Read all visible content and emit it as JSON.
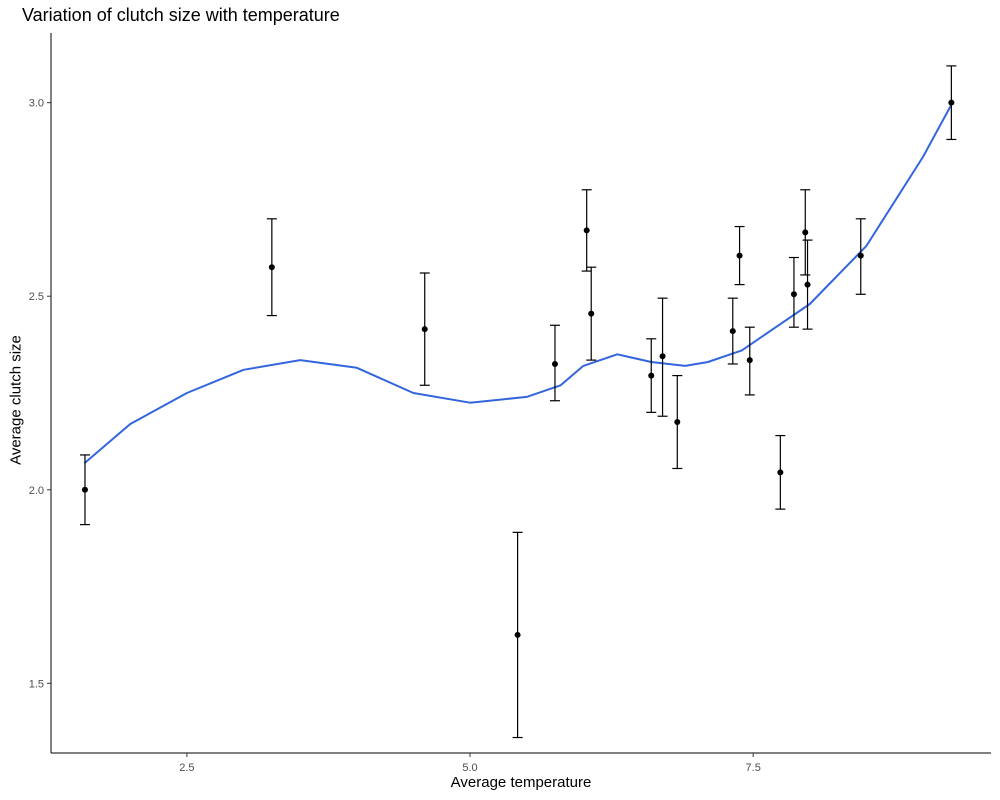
{
  "chart_data": {
    "type": "scatter",
    "title": "Variation of clutch size with temperature",
    "xlabel": "Average temperature",
    "ylabel": "Average clutch size",
    "xlim": [
      1.3,
      9.6
    ],
    "ylim": [
      1.32,
      3.18
    ],
    "x_ticks": [
      2.5,
      5.0,
      7.5
    ],
    "x_tick_labels": [
      "2.5",
      "5.0",
      "7.5"
    ],
    "y_ticks": [
      1.5,
      2.0,
      2.5,
      3.0
    ],
    "y_tick_labels": [
      "1.5",
      "2.0",
      "2.5",
      "3.0"
    ],
    "grid": false,
    "legend": "none",
    "colors": {
      "points": "#000000",
      "error_bars": "#000000",
      "smooth_line": "#3366dd",
      "axes": "#000000"
    },
    "points": [
      {
        "x": 1.6,
        "y": 2.0,
        "ymin": 1.91,
        "ymax": 2.09
      },
      {
        "x": 3.25,
        "y": 2.575,
        "ymin": 2.45,
        "ymax": 2.7
      },
      {
        "x": 4.6,
        "y": 2.415,
        "ymin": 2.27,
        "ymax": 2.56
      },
      {
        "x": 5.42,
        "y": 1.625,
        "ymin": 1.36,
        "ymax": 1.89
      },
      {
        "x": 5.75,
        "y": 2.325,
        "ymin": 2.23,
        "ymax": 2.425
      },
      {
        "x": 6.03,
        "y": 2.67,
        "ymin": 2.565,
        "ymax": 2.775
      },
      {
        "x": 6.07,
        "y": 2.455,
        "ymin": 2.335,
        "ymax": 2.575
      },
      {
        "x": 6.6,
        "y": 2.295,
        "ymin": 2.2,
        "ymax": 2.39
      },
      {
        "x": 6.7,
        "y": 2.345,
        "ymin": 2.19,
        "ymax": 2.495
      },
      {
        "x": 6.83,
        "y": 2.175,
        "ymin": 2.055,
        "ymax": 2.295
      },
      {
        "x": 7.32,
        "y": 2.41,
        "ymin": 2.325,
        "ymax": 2.495
      },
      {
        "x": 7.38,
        "y": 2.605,
        "ymin": 2.53,
        "ymax": 2.68
      },
      {
        "x": 7.47,
        "y": 2.335,
        "ymin": 2.245,
        "ymax": 2.42
      },
      {
        "x": 7.74,
        "y": 2.045,
        "ymin": 1.95,
        "ymax": 2.14
      },
      {
        "x": 7.86,
        "y": 2.505,
        "ymin": 2.42,
        "ymax": 2.6
      },
      {
        "x": 7.96,
        "y": 2.665,
        "ymin": 2.555,
        "ymax": 2.775
      },
      {
        "x": 7.98,
        "y": 2.53,
        "ymin": 2.415,
        "ymax": 2.645
      },
      {
        "x": 8.45,
        "y": 2.605,
        "ymin": 2.505,
        "ymax": 2.7
      },
      {
        "x": 9.25,
        "y": 3.0,
        "ymin": 2.905,
        "ymax": 3.095
      }
    ],
    "smooth_line": {
      "x": [
        1.6,
        2.0,
        2.5,
        3.0,
        3.5,
        4.0,
        4.5,
        5.0,
        5.5,
        5.8,
        6.0,
        6.3,
        6.6,
        6.9,
        7.1,
        7.4,
        7.7,
        8.0,
        8.5,
        9.0,
        9.25
      ],
      "y": [
        2.07,
        2.17,
        2.25,
        2.31,
        2.335,
        2.315,
        2.25,
        2.225,
        2.24,
        2.27,
        2.32,
        2.35,
        2.33,
        2.32,
        2.33,
        2.36,
        2.42,
        2.48,
        2.63,
        2.86,
        2.995
      ]
    }
  }
}
